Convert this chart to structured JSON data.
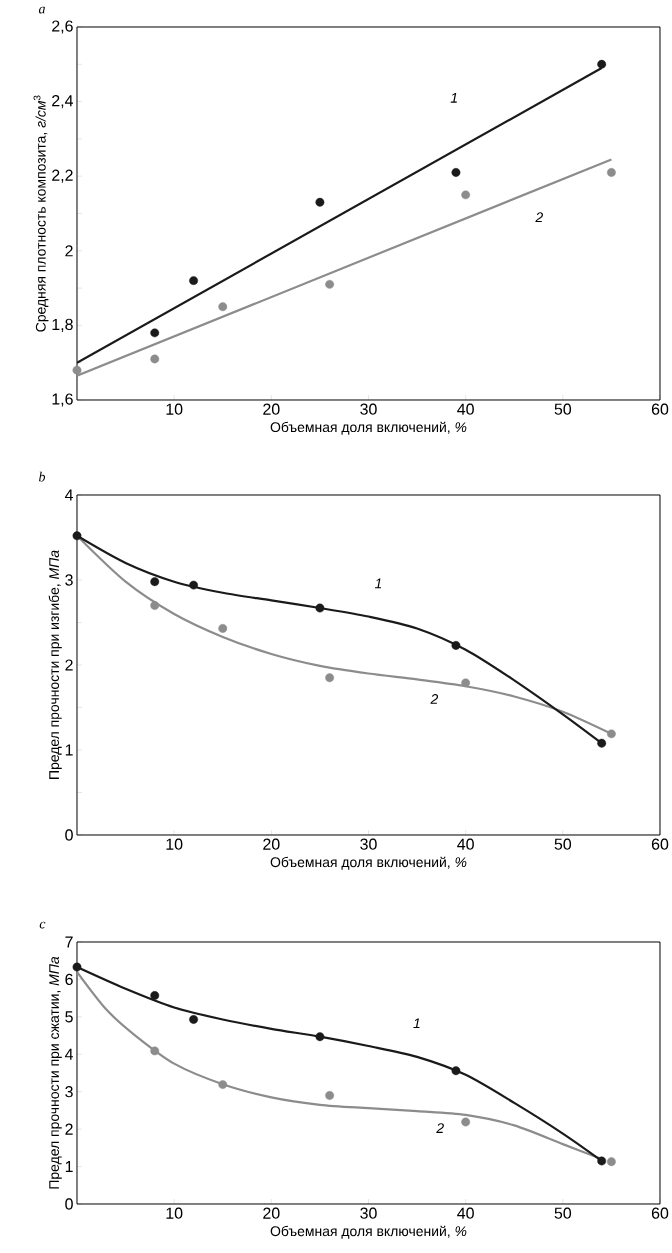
{
  "chart_data": [
    {
      "type": "scatter",
      "title": "a",
      "xlabel": "Объемная доля включений, *%*",
      "ylabel": "Средняя плотность композита, *г/см*$^{3}$",
      "xlim": [
        0,
        60
      ],
      "ylim": [
        1.6,
        2.6
      ],
      "xticks": [
        10,
        20,
        30,
        40,
        50,
        60
      ],
      "yticks": [
        {
          "value": 1.6,
          "label": "1,6"
        },
        {
          "value": 1.7,
          "label": null
        },
        {
          "value": 1.8,
          "label": "1,8"
        },
        {
          "value": 1.9,
          "label": null
        },
        {
          "value": 2.0,
          "label": "2"
        },
        {
          "value": 2.1,
          "label": null
        },
        {
          "value": 2.2,
          "label": "2,2"
        },
        {
          "value": 2.3,
          "label": null
        },
        {
          "value": 2.4,
          "label": "2,4"
        },
        {
          "value": 2.5,
          "label": null
        },
        {
          "value": 2.6,
          "label": "2,6"
        }
      ],
      "grid": false,
      "series": [
        {
          "marker": "circle",
          "color": "#1a1a1a",
          "x": [
            8,
            12,
            25,
            39,
            54
          ],
          "values": [
            1.78,
            1.92,
            2.13,
            2.21,
            2.5
          ]
        },
        {
          "marker": "circle",
          "color": "#8c8c8c",
          "x": [
            0,
            8,
            15,
            26,
            40,
            55
          ],
          "values": [
            1.68,
            1.71,
            1.85,
            1.91,
            2.15,
            2.21
          ]
        },
        {
          "type": "line",
          "marker": "none",
          "color": "#1a1a1a",
          "line_style": "solid",
          "x": [
            0,
            54
          ],
          "values": [
            1.7,
            2.49
          ]
        },
        {
          "type": "line",
          "marker": "none",
          "color": "#8c8c8c",
          "line_style": "solid",
          "x": [
            0,
            55
          ],
          "values": [
            1.665,
            2.245
          ]
        }
      ],
      "annotations": [
        "1",
        "2"
      ]
    },
    {
      "type": "scatter",
      "title": "b",
      "xlabel": "Объемная доля включений, *%*",
      "ylabel": "Предел прочности при изгибе, *МПа*",
      "xlim": [
        0,
        60
      ],
      "ylim": [
        0,
        4
      ],
      "xticks": [
        10,
        20,
        30,
        40,
        50,
        60
      ],
      "yticks": [
        0,
        {
          "value": 0.5,
          "label": null
        },
        1,
        {
          "value": 1.5,
          "label": null
        },
        2,
        {
          "value": 2.5,
          "label": null
        },
        3,
        {
          "value": 3.5,
          "label": null
        },
        4
      ],
      "grid": false,
      "series": [
        {
          "marker": "circle",
          "color": "#8c8c8c",
          "x": [
            8,
            15,
            26,
            40,
            55
          ],
          "values": [
            2.7,
            2.43,
            1.85,
            1.79,
            1.19
          ]
        },
        {
          "marker": "circle",
          "color": "#1a1a1a",
          "x": [
            0,
            8,
            12,
            25,
            39,
            54
          ],
          "values": [
            3.52,
            2.98,
            2.94,
            2.67,
            2.23,
            1.08
          ]
        },
        {
          "type": "line",
          "marker": "none",
          "color": "#8c8c8c",
          "line_style": "solid",
          "x": [
            0,
            5,
            10,
            15,
            20,
            25,
            30,
            35,
            40,
            45,
            50,
            55
          ],
          "values": [
            3.52,
            2.98,
            2.6,
            2.33,
            2.13,
            1.99,
            1.9,
            1.83,
            1.75,
            1.63,
            1.45,
            1.19
          ]
        },
        {
          "type": "line",
          "marker": "none",
          "color": "#1a1a1a",
          "line_style": "solid",
          "x": [
            0,
            5,
            10,
            15,
            20,
            25,
            30,
            35,
            40,
            45,
            50,
            54
          ],
          "values": [
            3.52,
            3.2,
            2.98,
            2.85,
            2.76,
            2.67,
            2.57,
            2.43,
            2.18,
            1.82,
            1.42,
            1.08
          ]
        }
      ],
      "annotations": [
        "1",
        "2"
      ]
    },
    {
      "type": "scatter",
      "title": "c",
      "xlabel": "Объемная доля включений, *%*",
      "ylabel": "Предел прочности при сжатии, *МПа*",
      "xlim": [
        0,
        60
      ],
      "ylim": [
        0,
        7
      ],
      "xticks": [
        10,
        20,
        30,
        40,
        50,
        60
      ],
      "yticks": [
        0,
        1,
        2,
        3,
        4,
        5,
        6,
        7
      ],
      "grid": false,
      "series": [
        {
          "marker": "circle",
          "color": "#8c8c8c",
          "x": [
            8,
            15,
            26,
            40,
            55
          ],
          "values": [
            4.09,
            3.19,
            2.9,
            2.19,
            1.13
          ]
        },
        {
          "marker": "circle",
          "color": "#1a1a1a",
          "x": [
            0,
            8,
            12,
            25,
            39,
            54
          ],
          "values": [
            6.33,
            5.57,
            4.93,
            4.47,
            3.56,
            1.15
          ]
        },
        {
          "type": "line",
          "marker": "none",
          "color": "#8c8c8c",
          "line_style": "solid",
          "x": [
            0,
            3,
            6,
            10,
            15,
            20,
            25,
            30,
            35,
            40,
            45,
            50,
            54
          ],
          "values": [
            6.2,
            5.2,
            4.5,
            3.75,
            3.2,
            2.85,
            2.65,
            2.56,
            2.48,
            2.38,
            2.1,
            1.6,
            1.2
          ]
        },
        {
          "type": "line",
          "marker": "none",
          "color": "#1a1a1a",
          "line_style": "solid",
          "x": [
            0,
            5,
            10,
            15,
            20,
            25,
            30,
            35,
            40,
            45,
            50,
            54
          ],
          "values": [
            6.33,
            5.75,
            5.25,
            4.93,
            4.68,
            4.47,
            4.22,
            3.93,
            3.45,
            2.7,
            1.88,
            1.15
          ]
        }
      ],
      "annotations": [
        "1",
        "2"
      ]
    }
  ]
}
